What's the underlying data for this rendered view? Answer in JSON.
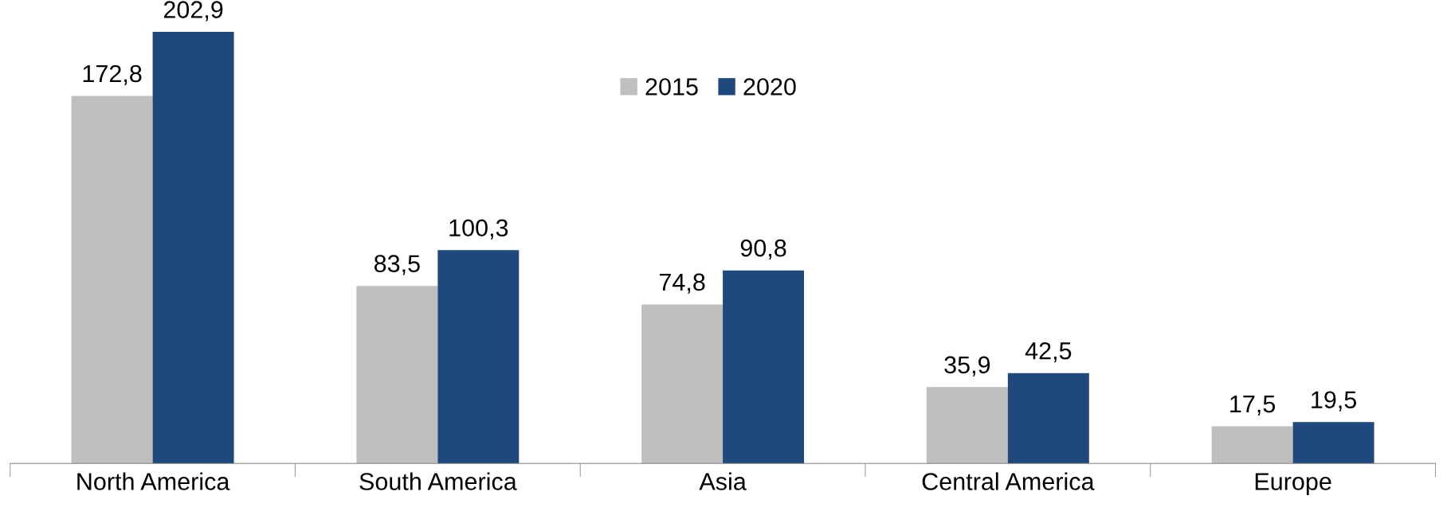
{
  "chart_data": {
    "type": "bar",
    "categories": [
      "North America",
      "South America",
      "Asia",
      "Central America",
      "Europe"
    ],
    "series": [
      {
        "name": "2015",
        "color": "#bfbfbf",
        "values": [
          172.8,
          83.5,
          74.8,
          35.9,
          17.5
        ],
        "value_labels": [
          "172,8",
          "83,5",
          "74,8",
          "35,9",
          "17,5"
        ]
      },
      {
        "name": "2020",
        "color": "#1f497d",
        "values": [
          202.9,
          100.3,
          90.8,
          42.5,
          19.5
        ],
        "value_labels": [
          "202,9",
          "100,3",
          "90,8",
          "42,5",
          "19,5"
        ]
      }
    ],
    "legend": "top",
    "grid": false
  }
}
